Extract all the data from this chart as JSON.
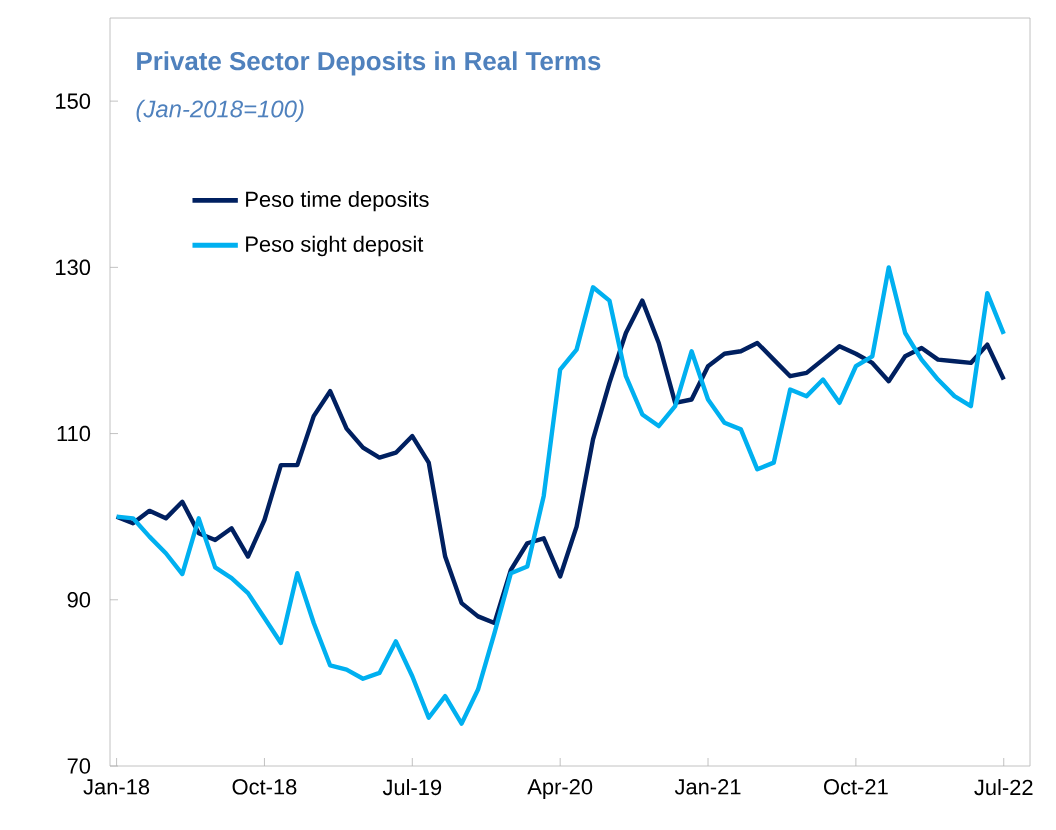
{
  "chart_data": {
    "type": "line",
    "title": "Private Sector Deposits in Real Terms",
    "subtitle": "(Jan-2018=100)",
    "categories": [
      "Jan-18",
      null,
      null,
      null,
      null,
      null,
      null,
      null,
      null,
      "Oct-18",
      null,
      null,
      null,
      null,
      null,
      null,
      null,
      null,
      "Jul-19",
      null,
      null,
      null,
      null,
      null,
      null,
      null,
      null,
      "Apr-20",
      null,
      null,
      null,
      null,
      null,
      null,
      null,
      null,
      "Jan-21",
      null,
      null,
      null,
      null,
      null,
      null,
      null,
      null,
      "Oct-21",
      null,
      null,
      null,
      null,
      null,
      null,
      null,
      null,
      "Jul-22"
    ],
    "series": [
      {
        "name": "Peso time deposits",
        "color": "#002060",
        "values": [
          100,
          99.2,
          100.7,
          99.8,
          101.8,
          98,
          97.2,
          98.6,
          95.2,
          99.6,
          106.2,
          106.2,
          112.1,
          115.1,
          110.6,
          108.3,
          107.1,
          107.7,
          109.7,
          106.5,
          95.2,
          89.6,
          88,
          87.2,
          93.6,
          96.8,
          97.4,
          92.8,
          98.8,
          109.3,
          116.1,
          122.1,
          126,
          120.9,
          113.7,
          114.1,
          118.1,
          119.6,
          119.9,
          120.9,
          118.9,
          116.9,
          117.3,
          118.9,
          120.5,
          119.6,
          118.5,
          116.3,
          119.3,
          120.3,
          118.9,
          118.7,
          118.5,
          120.7,
          116.5
        ]
      },
      {
        "name": "Peso sight deposit",
        "color": "#00b0f0",
        "values": [
          100,
          99.8,
          97.6,
          95.6,
          93.1,
          99.8,
          93.9,
          92.6,
          90.8,
          87.8,
          84.8,
          93.2,
          87.2,
          82.1,
          81.6,
          80.5,
          81.2,
          85,
          80.8,
          75.8,
          78.4,
          75.1,
          79.2,
          86,
          93.2,
          94,
          102.5,
          117.7,
          120.1,
          127.6,
          126,
          116.9,
          112.3,
          110.9,
          113.3,
          119.9,
          114.1,
          111.3,
          110.5,
          105.7,
          106.5,
          115.3,
          114.5,
          116.5,
          113.7,
          118.1,
          119.3,
          130,
          122.1,
          118.9,
          116.5,
          114.5,
          113.3,
          126.9,
          122
        ]
      }
    ],
    "ylim": [
      70,
      160
    ],
    "yticks": [
      70,
      90,
      110,
      130,
      150
    ],
    "legend": "top left",
    "grid": false,
    "line_style": "solid",
    "marker": "none"
  }
}
